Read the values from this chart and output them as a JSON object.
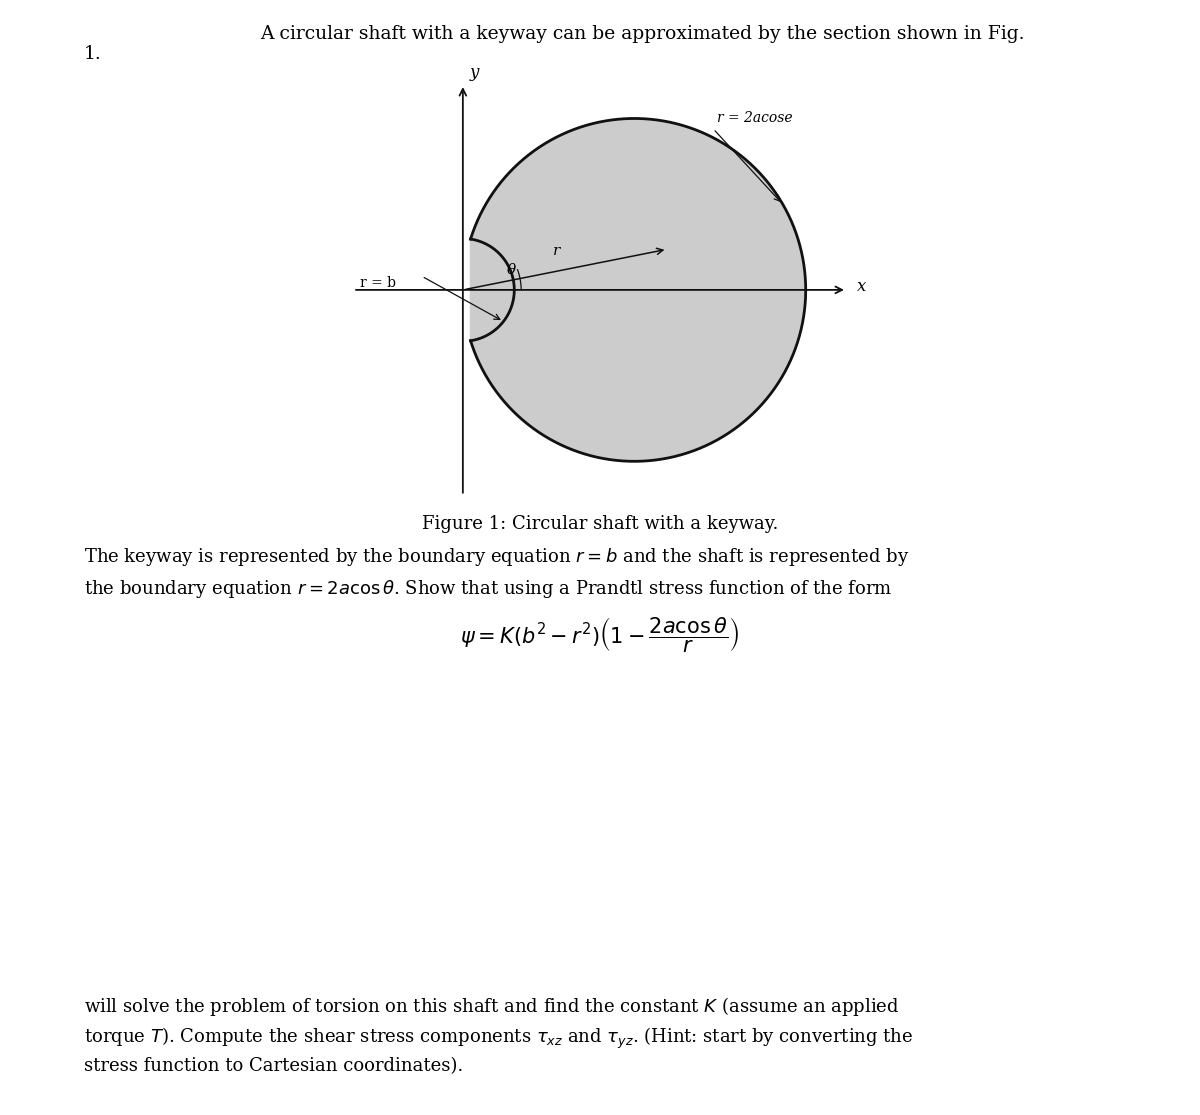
{
  "bg_color": "#ffffff",
  "fig_width": 12.0,
  "fig_height": 11.15,
  "title_text": "A circular shaft with a keyway can be approximated by the section shown in Fig.",
  "number_text": "1.",
  "figure_caption": "Figure 1: Circular shaft with a keyway.",
  "shaft_fill_color": "#cccccc",
  "shaft_edge_color": "#111111",
  "shaft_linewidth": 2.0,
  "axis_arrow_color": "#111111",
  "label_r_eq_b": "r = b",
  "label_r_eq_2acos": "r = 2acose",
  "label_x": "x",
  "label_y": "y",
  "label_r": "r",
  "label_theta": "θ",
  "para1_line1": "The keyway is represented by the boundary equation $r = b$ and the shaft is represented by",
  "para1_line2": "the boundary equation $r = 2a\\cos\\theta$. Show that using a Prandtl stress function of the form",
  "formula": "$\\psi = K(b^2 - r^2)\\left(1 - \\dfrac{2a\\cos\\theta}{r}\\right)$",
  "para2_line1": "will solve the problem of torsion on this shaft and find the constant $K$ (assume an applied",
  "para2_line2": "torque $T$). Compute the shear stress components $\\tau_{xz}$ and $\\tau_{yz}$. (Hint: start by converting the",
  "para2_line3": "stress function to Cartesian coordinates)."
}
